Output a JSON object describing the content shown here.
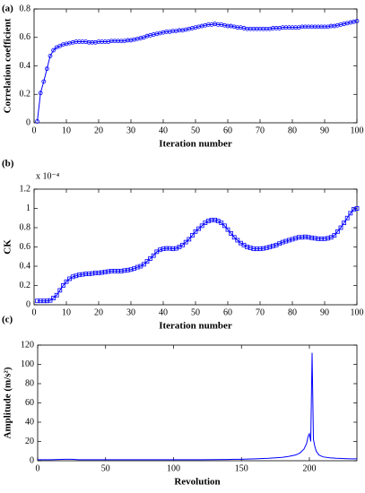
{
  "chart_data": [
    {
      "type": "line",
      "panel_label": "(a)",
      "y_label": "Correlation coefficient",
      "x_label": "Iteration number",
      "color": "#0000ff",
      "marker": "circle",
      "xlim": [
        0,
        100
      ],
      "xticks": [
        0,
        10,
        20,
        30,
        40,
        50,
        60,
        70,
        80,
        90,
        100
      ],
      "ylim": [
        0,
        0.8
      ],
      "yticks": [
        0,
        0.2,
        0.4,
        0.6,
        0.8
      ],
      "x": [
        1,
        2,
        3,
        4,
        5,
        6,
        7,
        8,
        9,
        10,
        11,
        12,
        13,
        14,
        15,
        16,
        17,
        18,
        19,
        20,
        21,
        22,
        23,
        24,
        25,
        26,
        27,
        28,
        29,
        30,
        31,
        32,
        33,
        34,
        35,
        36,
        37,
        38,
        39,
        40,
        41,
        42,
        43,
        44,
        45,
        46,
        47,
        48,
        49,
        50,
        51,
        52,
        53,
        54,
        55,
        56,
        57,
        58,
        59,
        60,
        61,
        62,
        63,
        64,
        65,
        66,
        67,
        68,
        69,
        70,
        71,
        72,
        73,
        74,
        75,
        76,
        77,
        78,
        79,
        80,
        81,
        82,
        83,
        84,
        85,
        86,
        87,
        88,
        89,
        90,
        91,
        92,
        93,
        94,
        95,
        96,
        97,
        98,
        99,
        100
      ],
      "values": [
        0.01,
        0.21,
        0.29,
        0.38,
        0.47,
        0.51,
        0.53,
        0.54,
        0.55,
        0.555,
        0.56,
        0.565,
        0.57,
        0.57,
        0.57,
        0.57,
        0.565,
        0.565,
        0.565,
        0.57,
        0.57,
        0.57,
        0.57,
        0.575,
        0.575,
        0.575,
        0.575,
        0.575,
        0.58,
        0.58,
        0.585,
        0.59,
        0.595,
        0.6,
        0.61,
        0.615,
        0.62,
        0.625,
        0.63,
        0.635,
        0.64,
        0.64,
        0.645,
        0.645,
        0.65,
        0.65,
        0.655,
        0.66,
        0.665,
        0.67,
        0.675,
        0.68,
        0.685,
        0.69,
        0.69,
        0.695,
        0.69,
        0.69,
        0.685,
        0.68,
        0.68,
        0.675,
        0.67,
        0.67,
        0.665,
        0.66,
        0.66,
        0.66,
        0.66,
        0.66,
        0.66,
        0.66,
        0.66,
        0.665,
        0.665,
        0.665,
        0.67,
        0.67,
        0.67,
        0.67,
        0.67,
        0.67,
        0.675,
        0.675,
        0.675,
        0.675,
        0.675,
        0.675,
        0.675,
        0.675,
        0.675,
        0.68,
        0.68,
        0.685,
        0.69,
        0.695,
        0.7,
        0.705,
        0.71,
        0.715
      ]
    },
    {
      "type": "line",
      "panel_label": "(b)",
      "y_label": "CK",
      "y_multiplier": "x 10⁻⁴",
      "x_label": "Iteration number",
      "color": "#0000ff",
      "marker": "square",
      "xlim": [
        0,
        100
      ],
      "xticks": [
        0,
        10,
        20,
        30,
        40,
        50,
        60,
        70,
        80,
        90,
        100
      ],
      "ylim": [
        0,
        1.2
      ],
      "yticks": [
        0,
        0.2,
        0.4,
        0.6,
        0.8,
        1,
        1.2
      ],
      "x": [
        1,
        2,
        3,
        4,
        5,
        6,
        7,
        8,
        9,
        10,
        11,
        12,
        13,
        14,
        15,
        16,
        17,
        18,
        19,
        20,
        21,
        22,
        23,
        24,
        25,
        26,
        27,
        28,
        29,
        30,
        31,
        32,
        33,
        34,
        35,
        36,
        37,
        38,
        39,
        40,
        41,
        42,
        43,
        44,
        45,
        46,
        47,
        48,
        49,
        50,
        51,
        52,
        53,
        54,
        55,
        56,
        57,
        58,
        59,
        60,
        61,
        62,
        63,
        64,
        65,
        66,
        67,
        68,
        69,
        70,
        71,
        72,
        73,
        74,
        75,
        76,
        77,
        78,
        79,
        80,
        81,
        82,
        83,
        84,
        85,
        86,
        87,
        88,
        89,
        90,
        91,
        92,
        93,
        94,
        95,
        96,
        97,
        98,
        99,
        100
      ],
      "values": [
        0.04,
        0.04,
        0.04,
        0.04,
        0.045,
        0.07,
        0.1,
        0.15,
        0.2,
        0.24,
        0.27,
        0.29,
        0.3,
        0.31,
        0.315,
        0.32,
        0.32,
        0.325,
        0.33,
        0.33,
        0.335,
        0.34,
        0.345,
        0.35,
        0.35,
        0.35,
        0.35,
        0.355,
        0.36,
        0.365,
        0.375,
        0.39,
        0.4,
        0.42,
        0.45,
        0.48,
        0.51,
        0.55,
        0.57,
        0.58,
        0.585,
        0.585,
        0.58,
        0.585,
        0.6,
        0.62,
        0.65,
        0.68,
        0.72,
        0.76,
        0.79,
        0.82,
        0.85,
        0.87,
        0.88,
        0.88,
        0.87,
        0.85,
        0.82,
        0.78,
        0.74,
        0.7,
        0.67,
        0.64,
        0.62,
        0.6,
        0.59,
        0.58,
        0.58,
        0.58,
        0.585,
        0.59,
        0.6,
        0.61,
        0.62,
        0.635,
        0.65,
        0.66,
        0.67,
        0.68,
        0.69,
        0.7,
        0.7,
        0.705,
        0.7,
        0.695,
        0.69,
        0.685,
        0.685,
        0.685,
        0.69,
        0.7,
        0.72,
        0.76,
        0.8,
        0.85,
        0.9,
        0.95,
        0.99,
        1
      ]
    },
    {
      "type": "line",
      "panel_label": "(c)",
      "y_label": "Amplitude (m/s²)",
      "x_label": "Revolution",
      "color": "#0000ff",
      "xlim": [
        0,
        235
      ],
      "xticks": [
        0,
        50,
        100,
        150,
        200
      ],
      "ylim": [
        0,
        120
      ],
      "yticks": [
        0,
        20,
        40,
        60,
        80,
        100,
        120
      ],
      "x": [
        0,
        10,
        20,
        25,
        30,
        40,
        50,
        60,
        70,
        80,
        90,
        100,
        110,
        120,
        130,
        140,
        145,
        150,
        160,
        170,
        180,
        185,
        190,
        193,
        196,
        198,
        199,
        200,
        201,
        202,
        203,
        204,
        205,
        207,
        210,
        215,
        220,
        230,
        235
      ],
      "values": [
        1,
        1,
        1.5,
        1.5,
        1,
        1,
        1,
        1,
        1,
        1,
        1,
        1,
        1,
        1,
        1.2,
        1.3,
        1.5,
        1.5,
        2,
        2.5,
        3.5,
        4.5,
        6,
        8,
        12,
        18,
        25,
        28,
        20,
        112,
        22,
        15,
        10,
        6,
        4,
        3,
        2.5,
        2,
        2
      ]
    }
  ]
}
